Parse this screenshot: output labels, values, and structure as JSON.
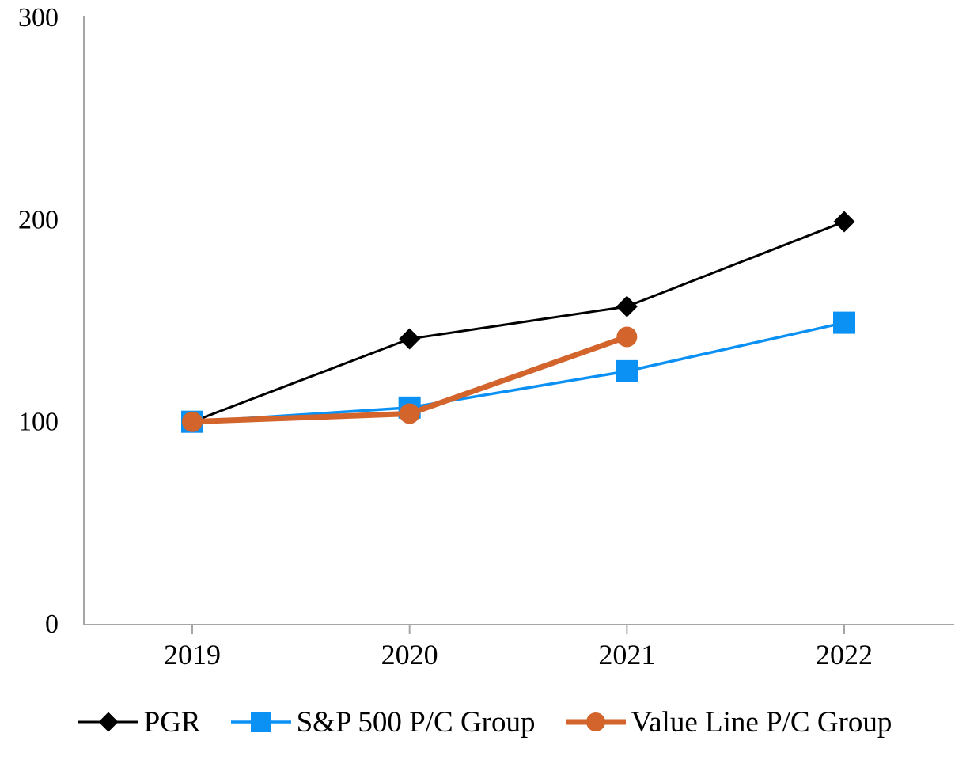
{
  "page": {
    "background_color": "#ffffff"
  },
  "chart_data": {
    "type": "line",
    "title": "",
    "xlabel": "",
    "ylabel": "",
    "categories": [
      "2019",
      "2020",
      "2021",
      "2022"
    ],
    "series": [
      {
        "name": "PGR",
        "marker": "diamond",
        "color": "#000000",
        "line_width": 3,
        "marker_size": 27,
        "values": [
          100,
          141,
          157,
          199
        ]
      },
      {
        "name": "S&P 500 P/C Group",
        "marker": "square",
        "color": "#0b90f4",
        "line_width": 3.5,
        "marker_size": 28,
        "values": [
          100,
          107,
          125,
          149
        ]
      },
      {
        "name": "Value Line P/C Group",
        "marker": "circle",
        "color": "#d2642c",
        "line_width": 7,
        "marker_size": 26,
        "values": [
          100,
          104,
          142,
          null
        ]
      }
    ],
    "ylim": [
      0,
      300
    ],
    "yticks": [
      0,
      100,
      200,
      300
    ],
    "grid": false,
    "legend_position": "bottom",
    "axis_color": "#a6a6a6",
    "text_color": "#000000"
  }
}
